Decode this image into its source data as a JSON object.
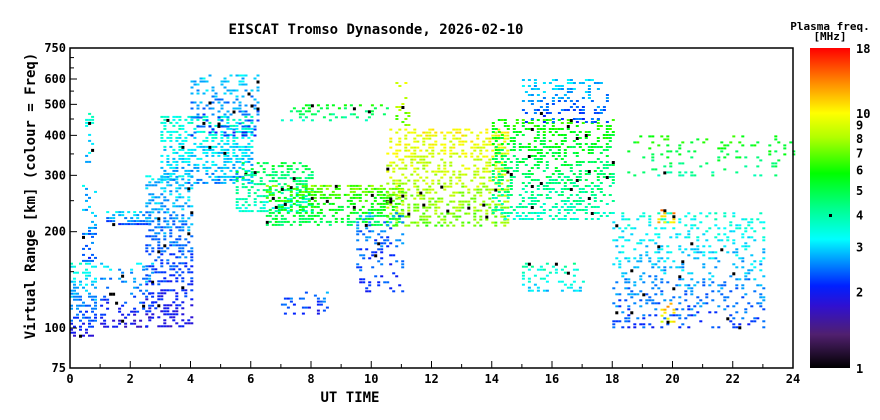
{
  "chart_data": {
    "type": "heatmap",
    "title": "EISCAT Tromso Dynasonde, 2026-02-10",
    "xlabel": "UT TIME",
    "ylabel": "Virtual Range [km] (colour = Freq)",
    "xlim": [
      0,
      24
    ],
    "ylim": [
      75,
      750
    ],
    "yscale": "log",
    "xticks": [
      "0",
      "2",
      "4",
      "6",
      "8",
      "10",
      "12",
      "14",
      "16",
      "18",
      "20",
      "22",
      "24"
    ],
    "yticks": [
      "75",
      "100",
      "200",
      "300",
      "400",
      "500",
      "600",
      "750"
    ],
    "colorbar": {
      "label": "Plasma freq.",
      "unit": "[MHz]",
      "range": [
        1,
        18
      ],
      "scale": "log",
      "ticks": [
        "1",
        "2",
        "3",
        "4",
        "5",
        "6",
        "7",
        "8",
        "9",
        "10",
        "18"
      ],
      "stops": [
        [
          1,
          "#000000"
        ],
        [
          1.35,
          "#50206e"
        ],
        [
          1.75,
          "#3010d0"
        ],
        [
          2.1,
          "#0020ff"
        ],
        [
          2.6,
          "#0090ff"
        ],
        [
          3.2,
          "#00ffff"
        ],
        [
          4.2,
          "#00ff90"
        ],
        [
          5.8,
          "#00ff00"
        ],
        [
          8,
          "#b0ff00"
        ],
        [
          10,
          "#ffff00"
        ],
        [
          13,
          "#ff9000"
        ],
        [
          18,
          "#ff0000"
        ]
      ]
    },
    "echo_regions": [
      {
        "h": [
          0.0,
          0.8
        ],
        "km": [
          95,
          160
        ],
        "f": [
          1.5,
          3.5
        ],
        "density": 0.8
      },
      {
        "h": [
          0.4,
          0.8
        ],
        "km": [
          160,
          280
        ],
        "f": [
          2.0,
          3.0
        ],
        "density": 0.5
      },
      {
        "h": [
          0.5,
          0.7
        ],
        "km": [
          330,
          470
        ],
        "f": [
          2.5,
          3.5
        ],
        "density": 0.5
      },
      {
        "h": [
          1.2,
          2.6
        ],
        "km": [
          212,
          232
        ],
        "f": [
          2.0,
          3.0
        ],
        "density": 0.9
      },
      {
        "h": [
          1.0,
          2.7
        ],
        "km": [
          100,
          160
        ],
        "f": [
          1.4,
          3.0
        ],
        "density": 0.5
      },
      {
        "h": [
          2.5,
          4.0
        ],
        "km": [
          100,
          300
        ],
        "f": [
          1.5,
          3.0
        ],
        "density": 0.8
      },
      {
        "h": [
          3.0,
          6.0
        ],
        "km": [
          280,
          460
        ],
        "f": [
          2.3,
          3.6
        ],
        "density": 0.9
      },
      {
        "h": [
          4.0,
          6.2
        ],
        "km": [
          400,
          620
        ],
        "f": [
          1.9,
          3.0
        ],
        "density": 0.6
      },
      {
        "h": [
          5.5,
          8.0
        ],
        "km": [
          230,
          330
        ],
        "f": [
          3.0,
          5.0
        ],
        "density": 0.8
      },
      {
        "h": [
          6.5,
          11.0
        ],
        "km": [
          210,
          280
        ],
        "f": [
          4.0,
          7.0
        ],
        "density": 0.9
      },
      {
        "h": [
          7.0,
          10.5
        ],
        "km": [
          440,
          500
        ],
        "f": [
          3.0,
          5.5
        ],
        "density": 0.5
      },
      {
        "h": [
          10.5,
          14.5
        ],
        "km": [
          210,
          420
        ],
        "f": [
          6.0,
          10.0
        ],
        "density": 0.8
      },
      {
        "h": [
          10.8,
          11.2
        ],
        "km": [
          420,
          600
        ],
        "f": [
          6.0,
          9.0
        ],
        "density": 0.4
      },
      {
        "h": [
          14.0,
          18.0
        ],
        "km": [
          220,
          450
        ],
        "f": [
          3.0,
          6.0
        ],
        "density": 0.7
      },
      {
        "h": [
          15.0,
          17.8
        ],
        "km": [
          440,
          600
        ],
        "f": [
          1.9,
          3.0
        ],
        "density": 0.5
      },
      {
        "h": [
          18.5,
          24.0
        ],
        "km": [
          300,
          400
        ],
        "f": [
          3.5,
          6.0
        ],
        "density": 0.3
      },
      {
        "h": [
          18.0,
          23.0
        ],
        "km": [
          100,
          230
        ],
        "f": [
          1.8,
          3.5
        ],
        "density": 0.4
      },
      {
        "h": [
          7.0,
          8.5
        ],
        "km": [
          110,
          130
        ],
        "f": [
          1.8,
          2.5
        ],
        "density": 0.5
      },
      {
        "h": [
          9.5,
          11.0
        ],
        "km": [
          130,
          230
        ],
        "f": [
          1.9,
          2.6
        ],
        "density": 0.4
      },
      {
        "h": [
          15.0,
          17.0
        ],
        "km": [
          130,
          160
        ],
        "f": [
          2.5,
          4.0
        ],
        "density": 0.5
      },
      {
        "h": [
          19.5,
          20.0
        ],
        "km": [
          215,
          235
        ],
        "f": [
          10.0,
          13.0
        ],
        "density": 0.7
      },
      {
        "h": [
          19.6,
          20.0
        ],
        "km": [
          105,
          120
        ],
        "f": [
          9.0,
          12.0
        ],
        "density": 0.5
      }
    ]
  }
}
